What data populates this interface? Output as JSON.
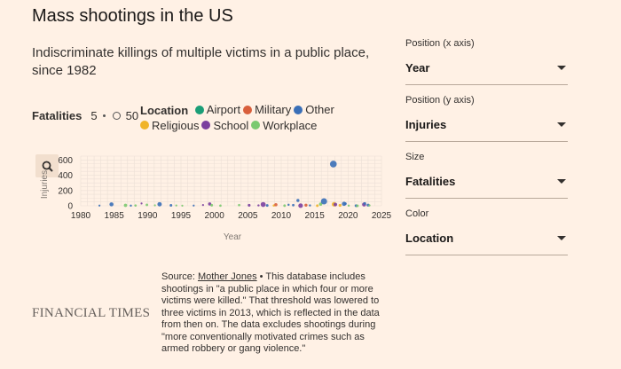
{
  "title": "Mass shootings in the US",
  "subtitle": "Indiscriminate killings of multiple victims in a public place, since 1982",
  "size_legend": {
    "label": "Fatalities",
    "min": "5",
    "max": "50"
  },
  "color_legend": {
    "label": "Location",
    "items": [
      {
        "name": "Airport",
        "color": "#1b9e77"
      },
      {
        "name": "Military",
        "color": "#d95f3c"
      },
      {
        "name": "Other",
        "color": "#3a6fb7"
      },
      {
        "name": "Religious",
        "color": "#f0b429"
      },
      {
        "name": "School",
        "color": "#7b3f9e"
      },
      {
        "name": "Workplace",
        "color": "#7bc96f"
      }
    ]
  },
  "controls": [
    {
      "label": "Position (x axis)",
      "value": "Year"
    },
    {
      "label": "Position (y axis)",
      "value": "Injuries"
    },
    {
      "label": "Size",
      "value": "Fatalities"
    },
    {
      "label": "Color",
      "value": "Location"
    }
  ],
  "source": {
    "prefix": "Source: ",
    "link": "Mother Jones",
    "text": " • This database includes shootings in \"a public place in which four or more victims were killed.\" That threshold was lowered to three victims in 2013, which is reflected in the data from then on. The data excludes shootings during \"more conventionally motivated crimes such as armed robbery or gang violence.\""
  },
  "logo": "FINANCIAL TIMES",
  "chart_data": {
    "type": "scatter",
    "title": "Mass shootings in the US",
    "xlabel": "Year",
    "ylabel": "Injuries",
    "xlim": [
      1980,
      2025
    ],
    "ylim": [
      0,
      650
    ],
    "xticks": [
      1980,
      1985,
      1990,
      1995,
      2000,
      2005,
      2010,
      2015,
      2020,
      2025
    ],
    "yticks": [
      0,
      200,
      400,
      600
    ],
    "grid": true,
    "points": [
      {
        "x": 1982.8,
        "y": 3,
        "size": 5,
        "cat": "Other"
      },
      {
        "x": 1984.6,
        "y": 19,
        "size": 21,
        "cat": "Other"
      },
      {
        "x": 1986.7,
        "y": 6,
        "size": 14,
        "cat": "Workplace"
      },
      {
        "x": 1987.5,
        "y": 2,
        "size": 6,
        "cat": "Other"
      },
      {
        "x": 1988.2,
        "y": 4,
        "size": 7,
        "cat": "Workplace"
      },
      {
        "x": 1989.1,
        "y": 30,
        "size": 5,
        "cat": "School"
      },
      {
        "x": 1989.9,
        "y": 12,
        "size": 8,
        "cat": "Workplace"
      },
      {
        "x": 1991.1,
        "y": 6,
        "size": 5,
        "cat": "Workplace"
      },
      {
        "x": 1991.8,
        "y": 20,
        "size": 24,
        "cat": "Other"
      },
      {
        "x": 1993.5,
        "y": 6,
        "size": 9,
        "cat": "Other"
      },
      {
        "x": 1994.3,
        "y": 4,
        "size": 5,
        "cat": "Workplace"
      },
      {
        "x": 1995.2,
        "y": 2,
        "size": 5,
        "cat": "Workplace"
      },
      {
        "x": 1996.9,
        "y": 3,
        "size": 5,
        "cat": "Other"
      },
      {
        "x": 1998.3,
        "y": 10,
        "size": 5,
        "cat": "School"
      },
      {
        "x": 1999.3,
        "y": 24,
        "size": 13,
        "cat": "School"
      },
      {
        "x": 1999.6,
        "y": 7,
        "size": 9,
        "cat": "Workplace"
      },
      {
        "x": 2000.9,
        "y": 2,
        "size": 7,
        "cat": "Workplace"
      },
      {
        "x": 2003.7,
        "y": 9,
        "size": 7,
        "cat": "Workplace"
      },
      {
        "x": 2005.2,
        "y": 7,
        "size": 10,
        "cat": "School"
      },
      {
        "x": 2006.6,
        "y": 5,
        "size": 6,
        "cat": "School"
      },
      {
        "x": 2007.3,
        "y": 17,
        "size": 32,
        "cat": "School"
      },
      {
        "x": 2007.9,
        "y": 5,
        "size": 9,
        "cat": "Other"
      },
      {
        "x": 2008.9,
        "y": 4,
        "size": 7,
        "cat": "Religious"
      },
      {
        "x": 2009.2,
        "y": 14,
        "size": 13,
        "cat": "Military"
      },
      {
        "x": 2010.5,
        "y": 2,
        "size": 8,
        "cat": "Workplace"
      },
      {
        "x": 2011.1,
        "y": 13,
        "size": 6,
        "cat": "Other"
      },
      {
        "x": 2011.8,
        "y": 8,
        "size": 8,
        "cat": "Other"
      },
      {
        "x": 2012.5,
        "y": 70,
        "size": 12,
        "cat": "Other"
      },
      {
        "x": 2012.9,
        "y": 2,
        "size": 27,
        "cat": "School"
      },
      {
        "x": 2013.7,
        "y": 8,
        "size": 12,
        "cat": "Military"
      },
      {
        "x": 2014.3,
        "y": 4,
        "size": 6,
        "cat": "Other"
      },
      {
        "x": 2015.4,
        "y": 1,
        "size": 9,
        "cat": "Religious"
      },
      {
        "x": 2015.9,
        "y": 22,
        "size": 14,
        "cat": "Workplace"
      },
      {
        "x": 2016.4,
        "y": 58,
        "size": 49,
        "cat": "Other"
      },
      {
        "x": 2017.8,
        "y": 546,
        "size": 58,
        "cat": "Other"
      },
      {
        "x": 2017.9,
        "y": 20,
        "size": 26,
        "cat": "Religious"
      },
      {
        "x": 2018.1,
        "y": 17,
        "size": 17,
        "cat": "School"
      },
      {
        "x": 2018.8,
        "y": 6,
        "size": 11,
        "cat": "Religious"
      },
      {
        "x": 2019.4,
        "y": 26,
        "size": 23,
        "cat": "Other"
      },
      {
        "x": 2019.6,
        "y": 27,
        "size": 9,
        "cat": "Other"
      },
      {
        "x": 2020.1,
        "y": 2,
        "size": 6,
        "cat": "Workplace"
      },
      {
        "x": 2021.2,
        "y": 1,
        "size": 10,
        "cat": "Other"
      },
      {
        "x": 2021.4,
        "y": 0,
        "size": 9,
        "cat": "Workplace"
      },
      {
        "x": 2022.4,
        "y": 17,
        "size": 21,
        "cat": "School"
      },
      {
        "x": 2022.5,
        "y": 30,
        "size": 10,
        "cat": "Other"
      },
      {
        "x": 2023.0,
        "y": 9,
        "size": 11,
        "cat": "Other"
      },
      {
        "x": 2023.2,
        "y": 4,
        "size": 6,
        "cat": "Workplace"
      }
    ]
  }
}
